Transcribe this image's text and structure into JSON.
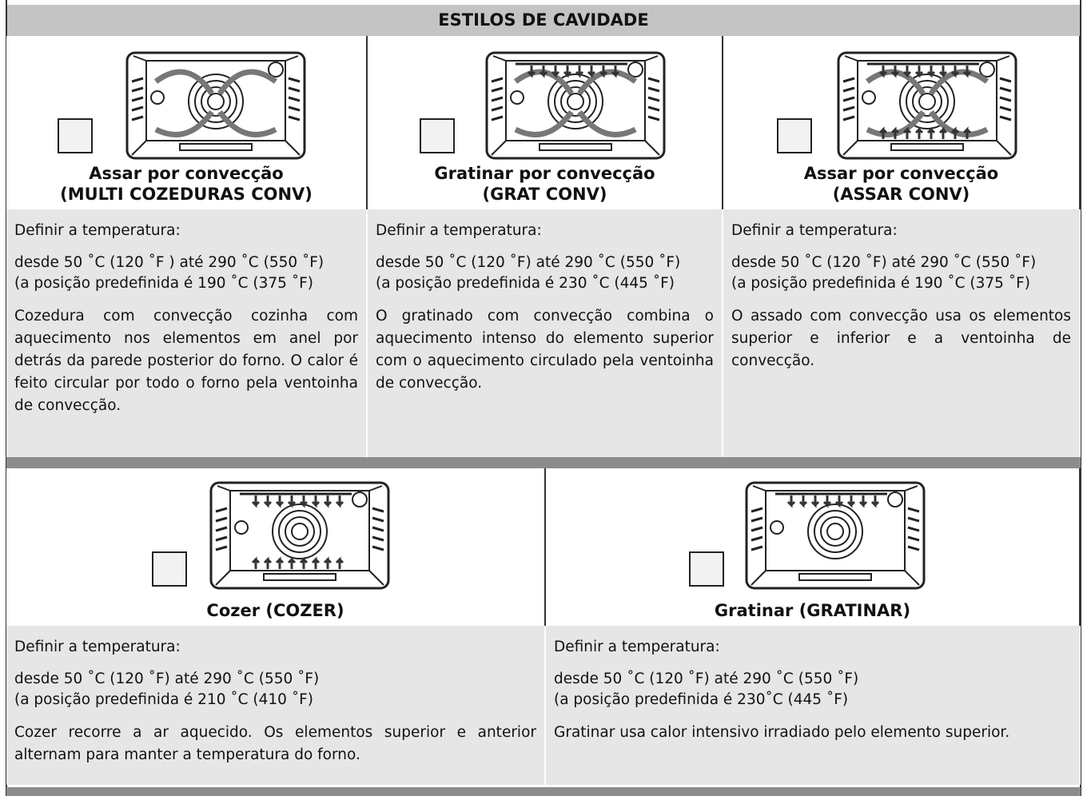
{
  "header": {
    "title": "ESTILOS DE CAVIDADE"
  },
  "modes": [
    {
      "name": [
        "Assar por convecção",
        "(MULTI COZEDURAS CONV)"
      ],
      "set_label": "Definir a temperatura:",
      "range": [
        "desde 50 ˚C (120 ˚F ) até 290 ˚C (550 ˚F)",
        "(a posição predefinida é 190 ˚C (375 ˚F)"
      ],
      "description": "Cozedura com convecção cozinha com aquecimento nos elementos em anel por detrás da parede posterior do forno. O calor é feito circular por todo o forno pela ventoinha de convecção."
    },
    {
      "name": [
        "Gratinar por convecção",
        "(GRAT CONV)"
      ],
      "set_label": "Definir a temperatura:",
      "range": [
        "desde 50 ˚C (120 ˚F) até 290 ˚C (550 ˚F)",
        "(a posição predefinida é 230 ˚C (445 ˚F)"
      ],
      "description": "O gratinado com convecção combina o aquecimento intenso do elemento superior com o aquecimento circulado pela ventoinha de convecção."
    },
    {
      "name": [
        "Assar por convecção",
        "(ASSAR CONV)"
      ],
      "set_label": "Definir a temperatura:",
      "range": [
        "desde 50 ˚C (120 ˚F) até 290 ˚C (550 ˚F)",
        "(a posição predefinida é 190 ˚C (375 ˚F)"
      ],
      "description": "O assado com convecção usa os elementos superior e inferior e a ventoinha de convecção."
    },
    {
      "name": [
        "Cozer (COZER)"
      ],
      "set_label": "Definir a temperatura:",
      "range": [
        "desde 50 ˚C (120 ˚F) até 290 ˚C (550 ˚F)",
        "(a posição predefinida é 210 ˚C (410 ˚F)"
      ],
      "description": "Cozer recorre a ar aquecido. Os elementos superior e anterior alternam para manter a temperatura do forno."
    },
    {
      "name": [
        "Gratinar (GRATINAR)"
      ],
      "set_label": "Definir a temperatura:",
      "range": [
        "desde 50 ˚C (120 ˚F) até 290 ˚C (550 ˚F)",
        "(a posição predefinida é 230˚C (445 ˚F)"
      ],
      "description": "Gratinar usa calor intensivo irradiado pelo elemento superior."
    }
  ]
}
